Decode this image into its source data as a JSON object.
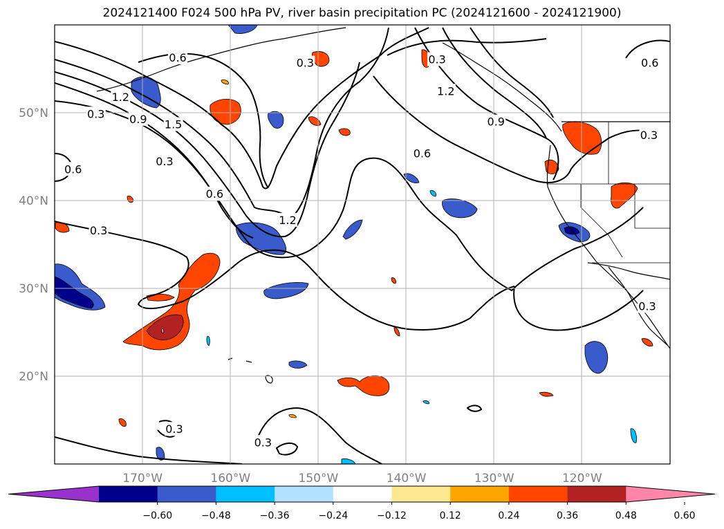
{
  "title": "2024121400 F024 500 hPa PV, river basin precipitation PC (2024121600 - 2024121900)",
  "map": {
    "projection": "plate-carree",
    "lon_range": [
      -180,
      -110
    ],
    "lat_range": [
      10,
      60
    ],
    "gridlines": true,
    "lat_ticks": [
      {
        "value": 50,
        "label": "50°N"
      },
      {
        "value": 40,
        "label": "40°N"
      },
      {
        "value": 30,
        "label": "30°N"
      },
      {
        "value": 20,
        "label": "20°N"
      }
    ],
    "lon_ticks": [
      {
        "value": -170,
        "label": "170°W"
      },
      {
        "value": -160,
        "label": "160°W"
      },
      {
        "value": -150,
        "label": "150°W"
      },
      {
        "value": -140,
        "label": "140°W"
      },
      {
        "value": -130,
        "label": "130°W"
      },
      {
        "value": -120,
        "label": "120°W"
      }
    ]
  },
  "pv_contour_labels": [
    {
      "text": "0.6",
      "lon": -166,
      "lat": 56.3
    },
    {
      "text": "0.3",
      "lon": -151.5,
      "lat": 55.7
    },
    {
      "text": "1.2",
      "lon": -172.5,
      "lat": 51.8
    },
    {
      "text": "0.3",
      "lon": -175.3,
      "lat": 49.9
    },
    {
      "text": "0.9",
      "lon": -170.5,
      "lat": 49.3
    },
    {
      "text": "1.5",
      "lon": -166.5,
      "lat": 48.7
    },
    {
      "text": "0.6",
      "lon": -177.9,
      "lat": 43.6
    },
    {
      "text": "0.3",
      "lon": -167.5,
      "lat": 44.5
    },
    {
      "text": "0.6",
      "lon": -161.8,
      "lat": 40.8
    },
    {
      "text": "1.2",
      "lon": -153.5,
      "lat": 37.8
    },
    {
      "text": "0.3",
      "lon": -175.0,
      "lat": 36.6
    },
    {
      "text": "0.3",
      "lon": -136.5,
      "lat": 56.1
    },
    {
      "text": "1.2",
      "lon": -135.5,
      "lat": 52.5
    },
    {
      "text": "0.9",
      "lon": -129.8,
      "lat": 49.0
    },
    {
      "text": "0.6",
      "lon": -138.2,
      "lat": 45.4
    },
    {
      "text": "0.6",
      "lon": -112.3,
      "lat": 55.7
    },
    {
      "text": "0.3",
      "lon": -112.4,
      "lat": 47.5
    },
    {
      "text": "0.3",
      "lon": -112.6,
      "lat": 28.0
    },
    {
      "text": "0.3",
      "lon": -166.4,
      "lat": 14.0
    },
    {
      "text": "0.3",
      "lon": -156.3,
      "lat": 12.5
    }
  ],
  "colorbar": {
    "extend": "both",
    "colors": [
      "#9932cc",
      "#00008b",
      "#3a5bcb",
      "#00bfff",
      "#b0e2ff",
      "#ffffff",
      "#fce98f",
      "#ffa500",
      "#ff4500",
      "#b22222",
      "#ff86a9"
    ],
    "tick_labels": [
      "−0.60",
      "−0.48",
      "−0.36",
      "−0.24",
      "−0.12",
      "0.12",
      "0.24",
      "0.36",
      "0.48",
      "0.60"
    ]
  }
}
